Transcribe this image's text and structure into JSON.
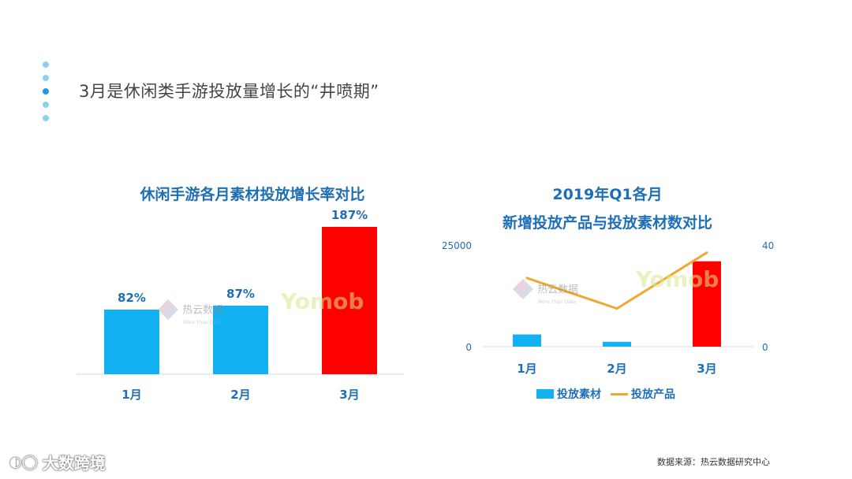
{
  "page": {
    "title": "3月是休闲类手游投放量增长的“井喷期”",
    "source": "数据来源：热云数据研究中心",
    "brand": "大数跨境",
    "colors": {
      "accent": "#1f6fb6",
      "bar_blue": "#12b1f2",
      "bar_red": "#ff0000",
      "line_orange": "#f0a830"
    }
  },
  "watermarks": {
    "reyun_name": "热云数据",
    "reyun_sub": "More Than Data",
    "yomob": "Yomob"
  },
  "chart_data": [
    {
      "type": "bar",
      "title": "休闲手游各月素材投放增长率对比",
      "categories": [
        "1月",
        "2月",
        "3月"
      ],
      "values": [
        82,
        87,
        187
      ],
      "data_labels": [
        "82%",
        "87%",
        "187%"
      ],
      "highlight": [
        false,
        false,
        true
      ],
      "ylim": [
        0,
        187
      ]
    },
    {
      "type": "bar",
      "title_line1": "2019年Q1各月",
      "title_line2": "新增投放产品与投放素材数对比",
      "categories": [
        "1月",
        "2月",
        "3月"
      ],
      "series": [
        {
          "name": "投放素材",
          "type": "bar",
          "axis": "left",
          "values": [
            3000,
            1200,
            21000
          ],
          "highlight": [
            false,
            false,
            true
          ]
        },
        {
          "name": "投放产品",
          "type": "line",
          "axis": "right",
          "values": [
            27,
            15,
            37
          ]
        }
      ],
      "y_left": {
        "min": 0,
        "max": 25000,
        "tick_labels": [
          "0",
          "25000"
        ]
      },
      "y_right": {
        "min": 0,
        "max": 40,
        "tick_labels": [
          "0",
          "40"
        ]
      }
    }
  ]
}
